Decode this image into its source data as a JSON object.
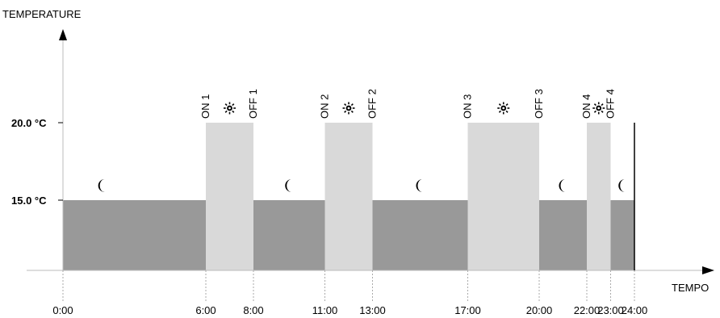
{
  "chart_data": {
    "type": "area",
    "ylabel": "TEMPERATURE",
    "xlabel": "TEMPO",
    "y_ticks": [
      {
        "value": 20,
        "label": "20.0 °C"
      },
      {
        "value": 15,
        "label": "15.0 °C"
      }
    ],
    "x_ticks": [
      {
        "value": 0,
        "label": "0:00"
      },
      {
        "value": 6,
        "label": "6:00"
      },
      {
        "value": 8,
        "label": "8:00"
      },
      {
        "value": 11,
        "label": "11:00"
      },
      {
        "value": 13,
        "label": "13:00"
      },
      {
        "value": 17,
        "label": "17:00"
      },
      {
        "value": 20,
        "label": "20:00"
      },
      {
        "value": 22,
        "label": "22:00"
      },
      {
        "value": 23,
        "label": "23:00"
      },
      {
        "value": 24,
        "label": "24:00"
      }
    ],
    "segments": [
      {
        "start": 0,
        "end": 6,
        "temperature": 15,
        "mode": "night",
        "icon": "moon-icon"
      },
      {
        "start": 6,
        "end": 8,
        "temperature": 20,
        "mode": "day",
        "icon": "sun-icon"
      },
      {
        "start": 8,
        "end": 11,
        "temperature": 15,
        "mode": "night",
        "icon": "moon-icon"
      },
      {
        "start": 11,
        "end": 13,
        "temperature": 20,
        "mode": "day",
        "icon": "sun-icon"
      },
      {
        "start": 13,
        "end": 17,
        "temperature": 15,
        "mode": "night",
        "icon": "moon-icon"
      },
      {
        "start": 17,
        "end": 20,
        "temperature": 20,
        "mode": "day",
        "icon": "sun-icon"
      },
      {
        "start": 20,
        "end": 22,
        "temperature": 15,
        "mode": "night",
        "icon": "moon-icon"
      },
      {
        "start": 22,
        "end": 23,
        "temperature": 20,
        "mode": "day",
        "icon": "sun-icon"
      },
      {
        "start": 23,
        "end": 24,
        "temperature": 15,
        "mode": "night",
        "icon": "moon-icon"
      }
    ],
    "events": [
      {
        "time": 6,
        "label": "ON 1"
      },
      {
        "time": 8,
        "label": "OFF 1"
      },
      {
        "time": 11,
        "label": "ON 2"
      },
      {
        "time": 13,
        "label": "OFF 2"
      },
      {
        "time": 17,
        "label": "ON 3"
      },
      {
        "time": 20,
        "label": "OFF 3"
      },
      {
        "time": 22,
        "label": "ON 4"
      },
      {
        "time": 23,
        "label": "OFF 4"
      }
    ],
    "colors": {
      "night": "#999999",
      "day": "#d9d9d9",
      "axis": "#000000"
    },
    "grid": false
  }
}
